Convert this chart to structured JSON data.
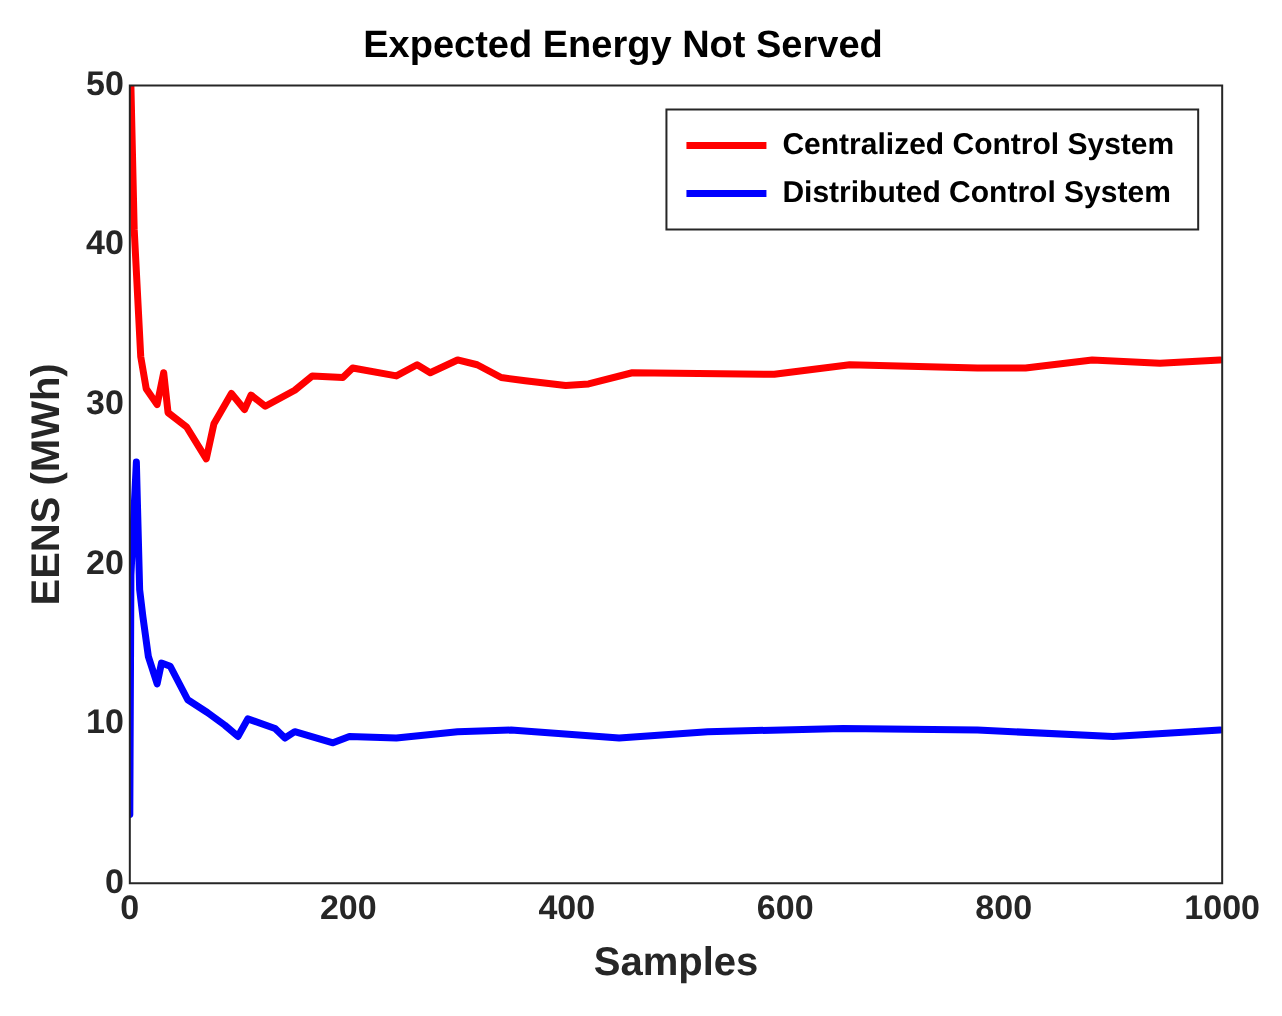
{
  "chart_data": {
    "type": "line",
    "title": "Expected Energy Not Served",
    "xlabel": "Samples",
    "ylabel": "EENS (MWh)",
    "xlim": [
      0,
      1000
    ],
    "xticks": [
      0,
      200,
      400,
      600,
      800,
      1000
    ],
    "ylim": [
      0,
      50
    ],
    "yticks": [
      0,
      10,
      20,
      30,
      40,
      50
    ],
    "grid": false,
    "legend": "top right",
    "marker": "none",
    "line_style": "solid",
    "series": [
      {
        "name": "Centralized Control System",
        "color": "#ff0000",
        "x": [
          1,
          4,
          10,
          15,
          25,
          31,
          35,
          52,
          70,
          77,
          93,
          105,
          111,
          124,
          151,
          167,
          195,
          204,
          244,
          263,
          275,
          300,
          318,
          340,
          362,
          399,
          420,
          460,
          590,
          659,
          776,
          820,
          881,
          943,
          998
        ],
        "values": [
          50,
          41,
          33,
          31,
          30,
          32,
          29.5,
          28.6,
          26.6,
          28.8,
          30.7,
          29.7,
          30.6,
          29.9,
          30.9,
          31.8,
          31.7,
          32.3,
          31.8,
          32.5,
          32,
          32.8,
          32.5,
          31.7,
          31.5,
          31.2,
          31.3,
          32,
          31.9,
          32.5,
          32.3,
          32.3,
          32.8,
          32.6,
          32.8
        ]
      },
      {
        "name": "Distributed Control System",
        "color": "#0000ff",
        "x": [
          0,
          1,
          6,
          9,
          12,
          17,
          25,
          29,
          37,
          53,
          71,
          87,
          99,
          108,
          133,
          142,
          151,
          186,
          201,
          244,
          300,
          349,
          448,
          529,
          653,
          776,
          900,
          998
        ],
        "values": [
          4.3,
          19.3,
          26.4,
          18.4,
          16.7,
          14.2,
          12.5,
          13.8,
          13.6,
          11.5,
          10.7,
          9.9,
          9.2,
          10.3,
          9.7,
          9.1,
          9.5,
          8.8,
          9.2,
          9.1,
          9.5,
          9.6,
          9.1,
          9.5,
          9.7,
          9.6,
          9.2,
          9.6
        ]
      }
    ]
  }
}
